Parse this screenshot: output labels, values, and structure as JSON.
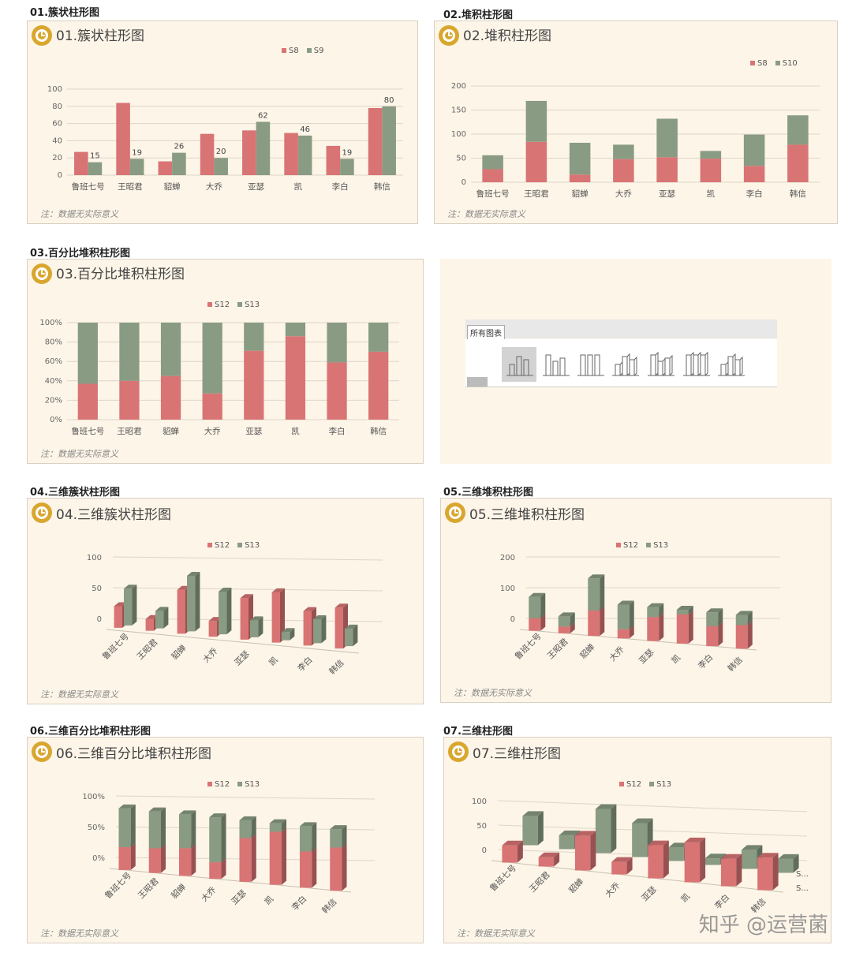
{
  "colors": {
    "s_red": "#d97474",
    "s_green": "#8a9b83",
    "card_bg": "#fdf5e8"
  },
  "note": "注：数据无实际意义",
  "watermark": "知乎 @运营菌",
  "gallery": {
    "tab_label": "所有图表"
  },
  "sections": [
    {
      "label": "01.簇状柱形图",
      "title": "01.簇状柱形图"
    },
    {
      "label": "02.堆积柱形图",
      "title": "02.堆积柱形图"
    },
    {
      "label": "03.百分比堆积柱形图",
      "title": "03.百分比堆积柱形图"
    },
    {
      "label": "04.三维簇状柱形图",
      "title": "04.三维簇状柱形图"
    },
    {
      "label": "05.三维堆积柱形图",
      "title": "05.三维堆积柱形图"
    },
    {
      "label": "06.三维百分比堆积柱形图",
      "title": "06.三维百分比堆积柱形图"
    },
    {
      "label": "07.三维柱形图",
      "title": "07.三维柱形图"
    }
  ],
  "chart_data": [
    {
      "type": "bar",
      "title": "01.簇状柱形图",
      "categories": [
        "鲁班七号",
        "王昭君",
        "貂蝉",
        "大乔",
        "亚瑟",
        "凯",
        "李白",
        "韩信"
      ],
      "series": [
        {
          "name": "S8",
          "values": [
            27,
            84,
            16,
            48,
            52,
            49,
            34,
            78
          ]
        },
        {
          "name": "S9",
          "values": [
            15,
            19,
            26,
            20,
            62,
            46,
            19,
            80
          ]
        }
      ],
      "y_ticks": [
        "0",
        "20",
        "40",
        "60",
        "80",
        "100"
      ],
      "ylim": [
        0,
        100
      ]
    },
    {
      "type": "bar",
      "title": "02.堆积柱形图",
      "stacked": true,
      "categories": [
        "鲁班七号",
        "王昭君",
        "貂蝉",
        "大乔",
        "亚瑟",
        "凯",
        "李白",
        "韩信"
      ],
      "series": [
        {
          "name": "S8",
          "values": [
            27,
            84,
            16,
            48,
            52,
            49,
            34,
            78
          ]
        },
        {
          "name": "S10",
          "values": [
            29,
            85,
            66,
            30,
            80,
            16,
            65,
            61
          ]
        }
      ],
      "y_ticks": [
        "0",
        "50",
        "100",
        "150",
        "200"
      ],
      "ylim": [
        0,
        200
      ]
    },
    {
      "type": "bar",
      "title": "03.百分比堆积柱形图",
      "stacked_percent": true,
      "categories": [
        "鲁班七号",
        "王昭君",
        "貂蝉",
        "大乔",
        "亚瑟",
        "凯",
        "李白",
        "韩信"
      ],
      "series": [
        {
          "name": "S12",
          "values": [
            37,
            40,
            45,
            27,
            71,
            86,
            59,
            70
          ]
        },
        {
          "name": "S13",
          "values": [
            63,
            60,
            55,
            73,
            29,
            14,
            41,
            30
          ]
        }
      ],
      "y_ticks": [
        "0%",
        "20%",
        "40%",
        "60%",
        "80%",
        "100%"
      ],
      "ylim": [
        0,
        100
      ]
    },
    {
      "type": "bar",
      "title": "04.三维簇状柱形图",
      "categories": [
        "鲁班七号",
        "王昭君",
        "貂蝉",
        "大乔",
        "亚瑟",
        "凯",
        "李白",
        "韩信"
      ],
      "series": [
        {
          "name": "S12",
          "values": [
            37,
            20,
            75,
            27,
            71,
            86,
            59,
            70
          ]
        },
        {
          "name": "S13",
          "values": [
            63,
            30,
            95,
            73,
            29,
            14,
            41,
            30
          ]
        }
      ],
      "y_ticks": [
        "0",
        "50",
        "100"
      ],
      "ylim": [
        0,
        100
      ]
    },
    {
      "type": "bar",
      "title": "05.三维堆积柱形图",
      "stacked": true,
      "categories": [
        "鲁班七号",
        "王昭君",
        "貂蝉",
        "大乔",
        "亚瑟",
        "凯",
        "李白",
        "韩信"
      ],
      "series": [
        {
          "name": "S12",
          "values": [
            37,
            20,
            75,
            27,
            71,
            86,
            59,
            70
          ]
        },
        {
          "name": "S13",
          "values": [
            63,
            30,
            95,
            73,
            29,
            14,
            41,
            30
          ]
        }
      ],
      "y_ticks": [
        "0",
        "100",
        "200"
      ],
      "ylim": [
        0,
        200
      ]
    },
    {
      "type": "bar",
      "title": "06.三维百分比堆积柱形图",
      "stacked_percent": true,
      "categories": [
        "鲁班七号",
        "王昭君",
        "貂蝉",
        "大乔",
        "亚瑟",
        "凯",
        "李白",
        "韩信"
      ],
      "series": [
        {
          "name": "S12",
          "values": [
            37,
            40,
            45,
            27,
            71,
            86,
            59,
            70
          ]
        },
        {
          "name": "S13",
          "values": [
            63,
            60,
            55,
            73,
            29,
            14,
            41,
            30
          ]
        }
      ],
      "y_ticks": [
        "0%",
        "50%",
        "100%"
      ],
      "ylim": [
        0,
        100
      ]
    },
    {
      "type": "bar",
      "title": "07.三维柱形图",
      "categories": [
        "鲁班七号",
        "王昭君",
        "貂蝉",
        "大乔",
        "亚瑟",
        "凯",
        "李白",
        "韩信"
      ],
      "series": [
        {
          "name": "S12",
          "values": [
            37,
            20,
            75,
            27,
            71,
            86,
            59,
            70
          ]
        },
        {
          "name": "S13",
          "values": [
            63,
            30,
            95,
            73,
            29,
            14,
            41,
            30
          ]
        }
      ],
      "depth_axis_labels": [
        "S...",
        "S..."
      ],
      "y_ticks": [
        "0",
        "50",
        "100"
      ],
      "ylim": [
        0,
        100
      ]
    }
  ]
}
